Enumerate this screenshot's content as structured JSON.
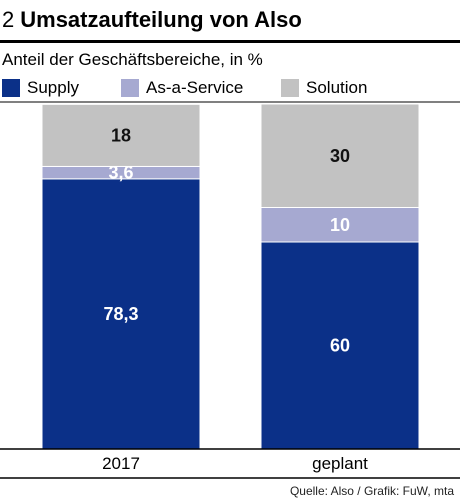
{
  "header": {
    "number": "2",
    "title": "Umsatzaufteilung von Also",
    "subtitle": "Anteil der Geschäftsbereiche, in %"
  },
  "legend": [
    {
      "label": "Supply",
      "color": "#0b3088"
    },
    {
      "label": "As-a-Service",
      "color": "#a6a9d1"
    },
    {
      "label": "Solution",
      "color": "#c2c2c2"
    }
  ],
  "chart_data": {
    "type": "bar",
    "stacked": true,
    "categories": [
      "2017",
      "geplant"
    ],
    "series": [
      {
        "name": "Supply",
        "values": [
          78.3,
          60
        ],
        "labels": [
          "78,3",
          "60"
        ],
        "color": "#0b3088"
      },
      {
        "name": "As-a-Service",
        "values": [
          3.6,
          10
        ],
        "labels": [
          "3,6",
          "10"
        ],
        "color": "#a6a9d1"
      },
      {
        "name": "Solution",
        "values": [
          18,
          30
        ],
        "labels": [
          "18",
          "30"
        ],
        "color": "#c2c2c2"
      }
    ],
    "ylim": [
      0,
      100
    ],
    "title": "Umsatzaufteilung von Also",
    "subtitle": "Anteil der Geschäftsbereiche, in %"
  },
  "footer": {
    "source": "Quelle: Also / Grafik: FuW, mta"
  }
}
